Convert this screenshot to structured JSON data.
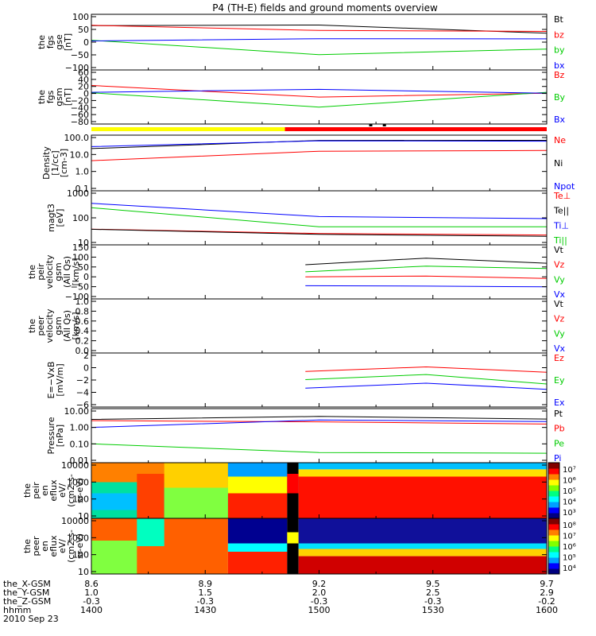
{
  "title": "P4 (TH-E) fields and ground moments overview",
  "chart_data": {
    "type": "line",
    "title": "P4 (TH-E) fields and ground moments overview",
    "x_ticks": [
      "1400",
      "1430",
      "1500",
      "1530",
      "1600"
    ],
    "bottom_rows": [
      {
        "name": "the_X-GSM",
        "values": [
          "8.6",
          "8.9",
          "9.2",
          "9.5",
          "9.7"
        ]
      },
      {
        "name": "the_Y-GSM",
        "values": [
          "1.0",
          "1.5",
          "2.0",
          "2.5",
          "2.9"
        ]
      },
      {
        "name": "the_Z-GSM",
        "values": [
          "-0.3",
          "-0.3",
          "-0.3",
          "-0.3",
          "-0.2"
        ]
      },
      {
        "name": "hhmm",
        "values": [
          "1400",
          "1430",
          "1500",
          "1530",
          "1600"
        ]
      }
    ],
    "date": "2010 Sep 23",
    "panels": [
      {
        "id": "fgs_gse",
        "ylabel": [
          "the",
          "fgs",
          "gse",
          "[nT]"
        ],
        "yticks": [
          "100",
          "50",
          "0",
          "−50",
          "−100"
        ],
        "legend": [
          {
            "label": "Bt",
            "color": "#000000"
          },
          {
            "label": "bz",
            "color": "#ff0000"
          },
          {
            "label": "by",
            "color": "#00cc00"
          },
          {
            "label": "bx",
            "color": "#0000ff"
          }
        ]
      },
      {
        "id": "fgs_gsm",
        "ylabel": [
          "the",
          "fgs",
          "gsm",
          "[nT]"
        ],
        "yticks": [
          "60",
          "40",
          "20",
          "0",
          "−20",
          "−40",
          "−60",
          "−80"
        ],
        "legend": [
          {
            "label": "Bz",
            "color": "#ff0000"
          },
          {
            "label": "By",
            "color": "#00cc00"
          },
          {
            "label": "Bx",
            "color": "#0000ff"
          }
        ]
      },
      {
        "id": "density",
        "ylabel": [
          "Density",
          "[1/cc]",
          "[cm-3]"
        ],
        "yticks": [
          "100.0",
          "10.0",
          "1.0",
          "0.1"
        ],
        "legend": [
          {
            "label": "Ne",
            "color": "#ff0000"
          },
          {
            "label": "Ni",
            "color": "#000000"
          },
          {
            "label": "Npot",
            "color": "#0000ff"
          }
        ]
      },
      {
        "id": "temp",
        "ylabel": [
          "magt3",
          "[eV]"
        ],
        "yticks": [
          "1000",
          "100",
          "10"
        ],
        "legend": [
          {
            "label": "Te⊥",
            "color": "#ff0000"
          },
          {
            "label": "Te||",
            "color": "#000000"
          },
          {
            "label": "Ti⊥",
            "color": "#0000ff"
          },
          {
            "label": "Ti||",
            "color": "#00cc00"
          }
        ]
      },
      {
        "id": "peir_vel",
        "ylabel": [
          "the",
          "peir",
          "velocity",
          "gsm",
          "(All Qs)",
          "[km/s]"
        ],
        "yticks": [
          "150",
          "100",
          "50",
          "0",
          "−50",
          "−100"
        ],
        "legend": [
          {
            "label": "Vt",
            "color": "#000000"
          },
          {
            "label": "Vz",
            "color": "#ff0000"
          },
          {
            "label": "Vy",
            "color": "#00cc00"
          },
          {
            "label": "Vx",
            "color": "#0000ff"
          }
        ]
      },
      {
        "id": "peer_vel",
        "ylabel": [
          "the",
          "peer",
          "velocity",
          "gsm",
          "(All Qs)",
          "[km/s]"
        ],
        "yticks": [
          "1.0",
          "0.8",
          "0.6",
          "0.4",
          "0.2",
          "0.0"
        ],
        "legend": [
          {
            "label": "Vt",
            "color": "#000000"
          },
          {
            "label": "Vz",
            "color": "#ff0000"
          },
          {
            "label": "Vy",
            "color": "#00cc00"
          },
          {
            "label": "Vx",
            "color": "#0000ff"
          }
        ]
      },
      {
        "id": "efield",
        "ylabel": [
          "E=−VxB",
          "[mV/m]"
        ],
        "yticks": [
          "2",
          "0",
          "−2",
          "−4",
          "−6"
        ],
        "legend": [
          {
            "label": "Ez",
            "color": "#ff0000"
          },
          {
            "label": "Ey",
            "color": "#00cc00"
          },
          {
            "label": "Ex",
            "color": "#0000ff"
          }
        ]
      },
      {
        "id": "pressure",
        "ylabel": [
          "Pressure",
          "[nPa]"
        ],
        "yticks": [
          "10.00",
          "1.00",
          "0.10",
          "0.01"
        ],
        "legend": [
          {
            "label": "Pt",
            "color": "#000000"
          },
          {
            "label": "Pb",
            "color": "#ff0000"
          },
          {
            "label": "Pe",
            "color": "#00cc00"
          },
          {
            "label": "Pi",
            "color": "#0000ff"
          }
        ]
      },
      {
        "id": "peir_spec",
        "ylabel": [
          "the",
          "peir",
          "en",
          "eflux",
          "eV/",
          "(cm2-s-",
          "sr-eV)"
        ],
        "yticks": [
          "10000",
          "1000",
          "100",
          "10"
        ],
        "colorbar": [
          "10⁷",
          "10⁶",
          "10⁵",
          "10⁴",
          "10³"
        ]
      },
      {
        "id": "peer_spec",
        "ylabel": [
          "the",
          "peer",
          "en",
          "eflux",
          "eV/",
          "(cm2-s-",
          "sr-eV)"
        ],
        "yticks": [
          "10000",
          "1000",
          "100",
          "10"
        ],
        "colorbar": [
          "10⁸",
          "10⁷",
          "10⁶",
          "10⁵",
          "10⁴"
        ]
      }
    ]
  }
}
